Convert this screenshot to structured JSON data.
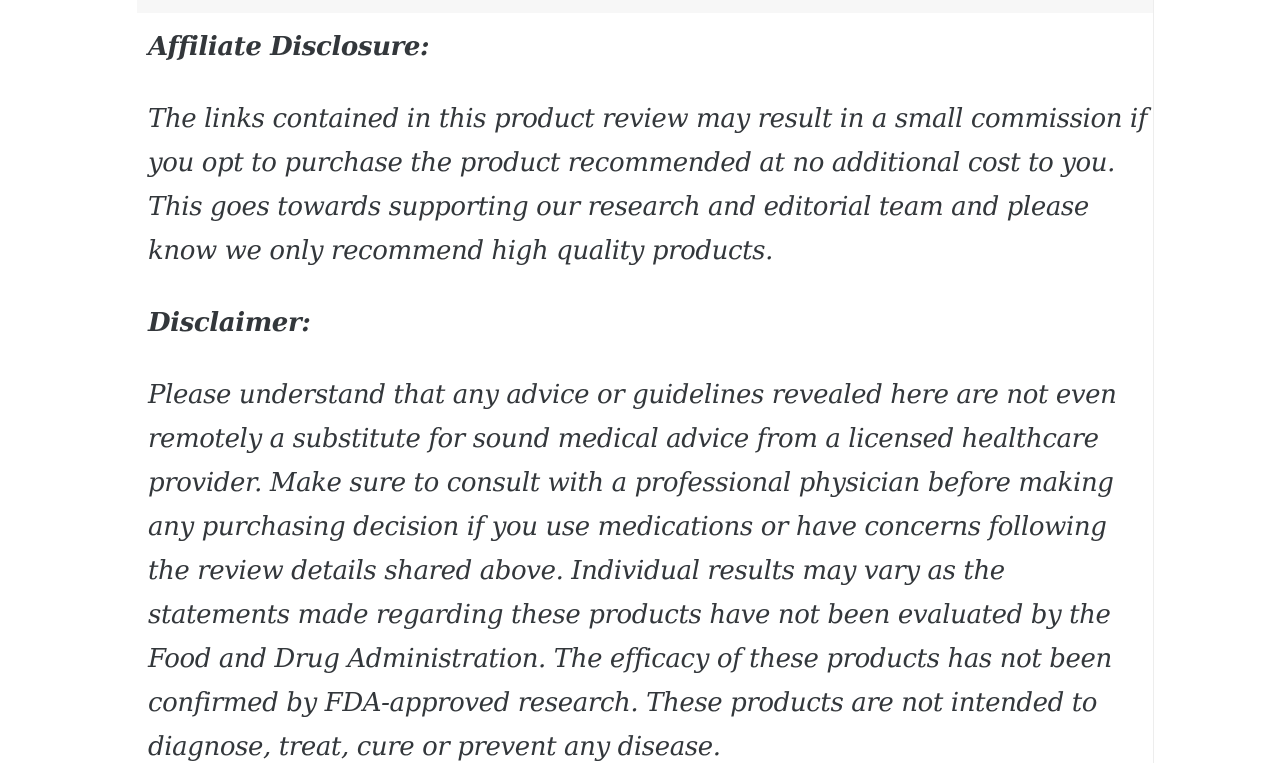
{
  "page": {
    "background_color": "#ffffff",
    "text_color": "#33373b",
    "divider_color": "#ededed",
    "top_strip_color": "#f7f7f7"
  },
  "article": {
    "affiliate": {
      "heading": "Affiliate Disclosure:",
      "body": "The links contained in this product review may result in a small commission if you opt to purchase the product recommended at no additional cost to you. This goes towards supporting our research and editorial team and please know we only recommend high quality products."
    },
    "disclaimer": {
      "heading": "Disclaimer:",
      "body": "Please understand that any advice or guidelines revealed here are not even remotely a substitute for sound medical advice from a licensed healthcare provider. Make sure to consult with a professional physician before making any purchasing decision if you use medications or have concerns following the review details shared above. Individual results may vary as the statements made regarding these products have not been evaluated by the Food and Drug Administration. The efficacy of these products has not been confirmed by FDA-approved research. These products are not intended to diagnose, treat, cure or prevent any disease."
    }
  }
}
